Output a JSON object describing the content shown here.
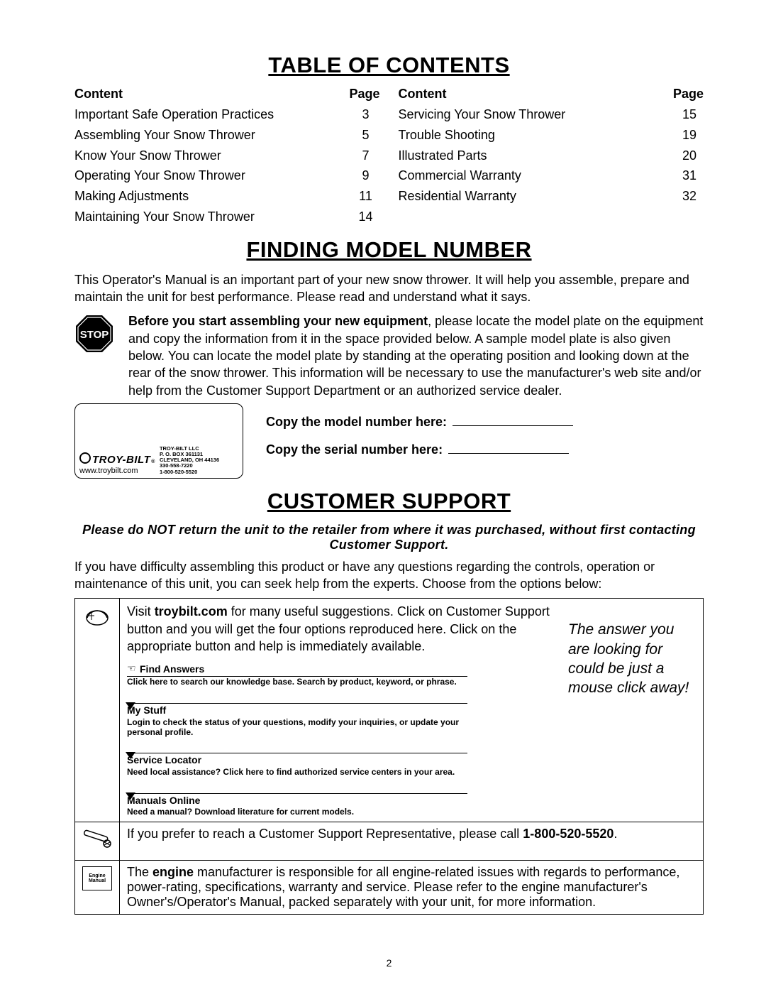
{
  "page_number": "2",
  "toc": {
    "heading": "TABLE OF CONTENTS",
    "header_content": "Content",
    "header_page": "Page",
    "left": [
      {
        "t": "Important Safe Operation Practices",
        "p": "3"
      },
      {
        "t": "Assembling Your Snow Thrower",
        "p": "5"
      },
      {
        "t": "Know Your Snow Thrower",
        "p": "7"
      },
      {
        "t": "Operating Your Snow Thrower",
        "p": "9"
      },
      {
        "t": "Making Adjustments",
        "p": "11"
      },
      {
        "t": "Maintaining Your Snow Thrower",
        "p": "14"
      }
    ],
    "right": [
      {
        "t": "Servicing Your Snow Thrower",
        "p": "15"
      },
      {
        "t": "Trouble Shooting",
        "p": "19"
      },
      {
        "t": "Illustrated Parts",
        "p": "20"
      },
      {
        "t": "Commercial Warranty",
        "p": "31"
      },
      {
        "t": "Residential Warranty",
        "p": "32"
      }
    ]
  },
  "model": {
    "heading": "FINDING MODEL NUMBER",
    "intro": "This Operator's Manual is an important part of your new snow thrower. It will help you assemble, prepare and maintain the unit for best performance. Please read and understand what it says.",
    "stop_label": "STOP",
    "stop_bold": "Before you start assembling your new equipment",
    "stop_rest": ", please locate the model plate on the equipment and copy the information from it in the space provided below. A sample model plate is also given below. You can locate the model plate by standing at the operating position and looking down at the rear of the snow thrower. This information will be necessary to use the manufacturer's web site and/or help from the Customer Support Department or an authorized service dealer.",
    "brand": "TROY-BILT",
    "brand_reg": "®",
    "url": "www.troybilt.com",
    "addr1": "TROY-BILT  LLC",
    "addr2": "P. O. BOX 361131",
    "addr3": "CLEVELAND, OH 44136",
    "addr4": "330-558-7220",
    "addr5": "1-800-520-5520",
    "copy_model": "Copy the model number here:",
    "copy_serial": "Copy the serial number here:"
  },
  "support": {
    "heading": "CUSTOMER SUPPORT",
    "warn": "Please do NOT return the unit to the retailer from where it was purchased, without first contacting Customer Support.",
    "intro": "If you have difficulty assembling this product or have any questions regarding the controls, operation or maintenance of this unit, you can seek help from the experts. Choose from the options below:",
    "web_lead_pre": "Visit ",
    "web_lead_bold": "troybilt.com",
    "web_lead_post": " for many useful suggestions. Click on Customer Support button and you will get the four options reproduced here. Click on the appropriate button and help is immediately available.",
    "opt1_t": "Find Answers",
    "opt1_d": "Click here to search our knowledge base. Search by product, keyword, or phrase.",
    "opt2_t": "My Stuff",
    "opt2_d": "Login to check the status of your questions, modify your inquiries, or update your personal profile.",
    "opt3_t": "Service Locator",
    "opt3_d": "Need local assistance? Click here to find authorized service centers in your area.",
    "opt4_t": "Manuals Online",
    "opt4_d": "Need a manual? Download literature for current models.",
    "tagline": "The answer you are looking for could be just a mouse click away!",
    "phone_pre": "If you prefer to reach a Customer Support Representative, please call ",
    "phone_num": "1-800-520-5520",
    "phone_post": ".",
    "engine_pre": "The ",
    "engine_bold": "engine",
    "engine_post": " manufacturer is responsible for all engine-related issues with regards to performance, power-rating, specifications, warranty and service. Please refer to the engine manufacturer's Owner's/Operator's Manual, packed separately with your unit, for more information.",
    "engine_icon_l1": "Engine",
    "engine_icon_l2": "Manual"
  },
  "icons": {
    "stop_fill": "#000000",
    "stop_text": "#ffffff"
  }
}
